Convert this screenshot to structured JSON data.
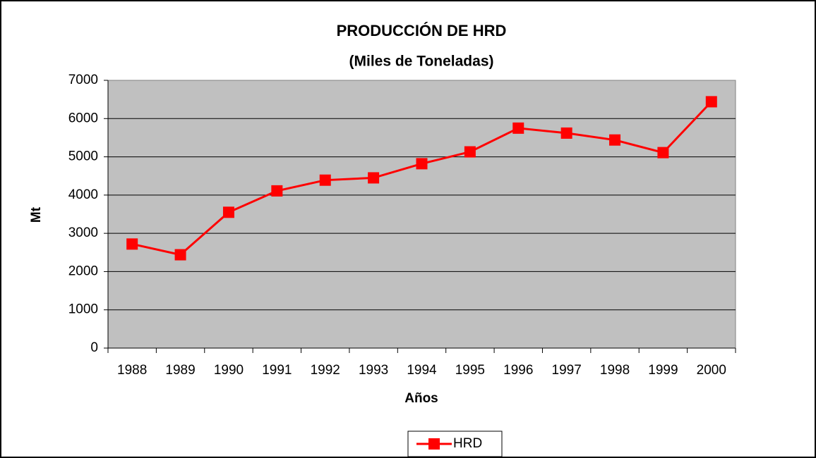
{
  "chart_data": {
    "type": "line",
    "title": "PRODUCCIÓN DE HRD",
    "subtitle": "(Miles de Toneladas)",
    "x_label": "Años",
    "y_label": "Mt",
    "categories": [
      "1988",
      "1989",
      "1990",
      "1991",
      "1992",
      "1993",
      "1994",
      "1995",
      "1996",
      "1997",
      "1998",
      "1999",
      "2000"
    ],
    "series": [
      {
        "name": "HRD",
        "color": "#ff0000",
        "values": [
          2720,
          2440,
          3550,
          4110,
          4390,
          4450,
          4820,
          5130,
          5750,
          5620,
          5440,
          5110,
          6440
        ]
      }
    ],
    "ylim": [
      0,
      7000
    ],
    "yticks": [
      0,
      1000,
      2000,
      3000,
      4000,
      5000,
      6000,
      7000
    ],
    "grid": true,
    "legend": "bottom"
  }
}
